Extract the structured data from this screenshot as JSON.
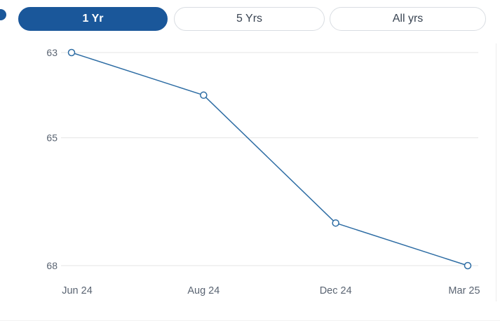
{
  "tabs": [
    {
      "label": "1 Yr",
      "selected": true
    },
    {
      "label": "5 Yrs",
      "selected": false
    },
    {
      "label": "All yrs",
      "selected": false
    }
  ],
  "chart_data": {
    "type": "line",
    "x": [
      "Jun 24",
      "Aug 24",
      "Dec 24",
      "Mar 25"
    ],
    "values": [
      63,
      64,
      67,
      68
    ],
    "yticks": [
      63,
      65,
      68
    ],
    "ylim": [
      63,
      68
    ],
    "y_axis_inverted": true,
    "grid": "horizontal",
    "legend": "none",
    "marker": "open-circle",
    "title": "",
    "xlabel": "",
    "ylabel": ""
  },
  "colors": {
    "selected_tab_bg": "#1a579a",
    "selected_tab_text": "#ffffff",
    "tab_text": "#394452",
    "tab_border": "#d9dde2",
    "axis_label": "#5a6472",
    "gridline": "#e4e4e4",
    "line": "#2e6da4",
    "marker_fill": "#ffffff"
  }
}
